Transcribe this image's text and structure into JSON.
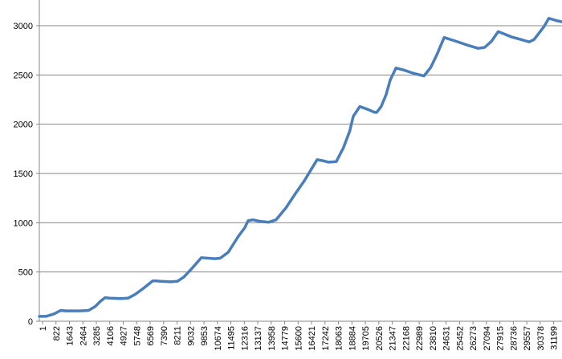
{
  "chart_data": {
    "type": "line",
    "title": "",
    "xlabel": "",
    "ylabel": "",
    "ylim": [
      0,
      3000
    ],
    "yticks": [
      0,
      500,
      1000,
      1500,
      2000,
      2500,
      3000
    ],
    "grid": true,
    "legend": "none",
    "series_color": "#4a7ebb",
    "grid_color": "#878787",
    "xticks": [
      "1",
      "822",
      "1643",
      "2464",
      "3285",
      "4106",
      "4927",
      "5748",
      "6569",
      "7390",
      "8211",
      "9032",
      "9853",
      "10674",
      "11495",
      "12316",
      "13137",
      "13958",
      "14779",
      "15600",
      "16421",
      "17242",
      "18063",
      "18884",
      "19705",
      "20526",
      "21347",
      "22168",
      "22989",
      "23810",
      "24631",
      "25452",
      "26273",
      "27094",
      "27915",
      "28736",
      "29557",
      "30378",
      "31199"
    ],
    "series": [
      {
        "x": [
          1,
          400,
          900,
          1300,
          1643,
          2464,
          3000,
          3400,
          3700,
          4000,
          4300,
          4927,
          5400,
          5800,
          6300,
          6900,
          7100,
          7390,
          8000,
          8400,
          8800,
          9300,
          9853,
          10300,
          10674,
          11000,
          11495,
          12100,
          12500,
          12700,
          13000,
          13137,
          13400,
          13958,
          14400,
          15000,
          15600,
          16100,
          16500,
          16900,
          17242,
          17600,
          18063,
          18500,
          18884,
          19100,
          19500,
          20000,
          20400,
          20526,
          20800,
          21100,
          21350,
          21700,
          22168,
          22800,
          23400,
          23810,
          24200,
          24631,
          25300,
          26000,
          26700,
          27094,
          27500,
          27915,
          28300,
          28736,
          29300,
          29800,
          30100,
          30378,
          30700,
          31000,
          31199,
          31500,
          31800
        ],
        "values": [
          50,
          50,
          75,
          110,
          105,
          105,
          110,
          150,
          200,
          240,
          235,
          230,
          235,
          270,
          330,
          410,
          410,
          405,
          400,
          405,
          450,
          540,
          645,
          640,
          635,
          640,
          700,
          860,
          950,
          1020,
          1030,
          1025,
          1015,
          1005,
          1030,
          1150,
          1300,
          1420,
          1530,
          1640,
          1630,
          1615,
          1620,
          1760,
          1930,
          2080,
          2180,
          2150,
          2120,
          2120,
          2180,
          2300,
          2450,
          2570,
          2550,
          2515,
          2490,
          2575,
          2710,
          2880,
          2845,
          2805,
          2770,
          2780,
          2840,
          2940,
          2915,
          2885,
          2860,
          2835,
          2860,
          2920,
          2990,
          3075,
          3065,
          3050,
          3040
        ]
      }
    ]
  }
}
